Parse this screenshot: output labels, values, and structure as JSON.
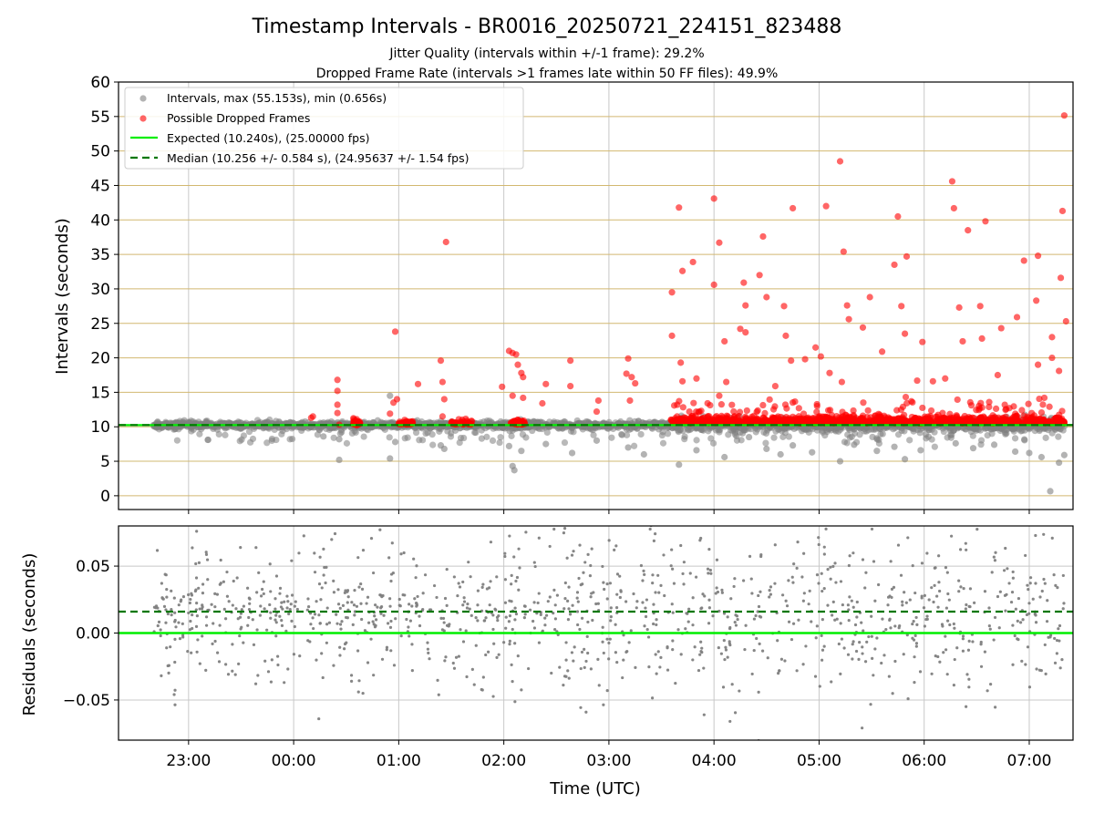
{
  "title": "Timestamp Intervals - BR0016_20250721_224151_823488",
  "subtitle_lines": [
    "Jitter Quality (intervals within +/-1 frame): 29.2%",
    "Dropped Frame Rate (intervals >1 frames late within 50 FF files): 49.9%"
  ],
  "colors": {
    "intervals": "#808080",
    "dropped": "#ff0000",
    "expected": "#00ee00",
    "median": "#007700",
    "hgrid": "#d2b870",
    "vgrid": "#c8c8c8"
  },
  "chart_data": [
    {
      "type": "scatter",
      "ylabel": "Intervals (seconds)",
      "ylim": [
        -2,
        60
      ],
      "yticks": [
        "0",
        "5",
        "10",
        "15",
        "20",
        "25",
        "30",
        "35",
        "40",
        "45",
        "50",
        "55",
        "60"
      ],
      "grid": true,
      "legend_position": "top-left",
      "legend": [
        "Intervals, max (55.153s), min (0.656s)",
        "Possible Dropped Frames",
        "Expected (10.240s), (25.00000 fps)",
        "Median (10.256 +/- 0.584 s), (24.95637 +/- 1.54 fps)"
      ],
      "expected": 10.24,
      "median": 10.256,
      "series": [
        {
          "name": "Intervals, max (55.153s), min (0.656s)",
          "band": {
            "x_start": "22:40",
            "x_end": "07:20",
            "center": 10.24
          },
          "points": [
            {
              "x": "00:17",
              "y": 8.6
            },
            {
              "x": "00:26",
              "y": 8.2
            },
            {
              "x": "00:26",
              "y": 5.2
            },
            {
              "x": "00:55",
              "y": 5.4
            },
            {
              "x": "00:55",
              "y": 14.5
            },
            {
              "x": "00:58",
              "y": 7.8
            },
            {
              "x": "01:24",
              "y": 7.3
            },
            {
              "x": "01:26",
              "y": 6.8
            },
            {
              "x": "02:03",
              "y": 7.2
            },
            {
              "x": "02:05",
              "y": 4.3
            },
            {
              "x": "02:06",
              "y": 3.7
            },
            {
              "x": "02:10",
              "y": 6.5
            },
            {
              "x": "02:24",
              "y": 7.5
            },
            {
              "x": "02:39",
              "y": 6.2
            },
            {
              "x": "02:53",
              "y": 8.0
            },
            {
              "x": "03:11",
              "y": 7.0
            },
            {
              "x": "03:20",
              "y": 6.0
            },
            {
              "x": "03:40",
              "y": 4.5
            },
            {
              "x": "03:50",
              "y": 6.6
            },
            {
              "x": "04:06",
              "y": 5.6
            },
            {
              "x": "04:20",
              "y": 8.5
            },
            {
              "x": "04:30",
              "y": 6.8
            },
            {
              "x": "04:38",
              "y": 6.0
            },
            {
              "x": "04:45",
              "y": 7.3
            },
            {
              "x": "04:56",
              "y": 6.3
            },
            {
              "x": "05:12",
              "y": 5.0
            },
            {
              "x": "05:20",
              "y": 7.4
            },
            {
              "x": "05:33",
              "y": 6.5
            },
            {
              "x": "05:43",
              "y": 7.1
            },
            {
              "x": "05:49",
              "y": 5.3
            },
            {
              "x": "05:58",
              "y": 6.6
            },
            {
              "x": "06:18",
              "y": 7.6
            },
            {
              "x": "06:28",
              "y": 6.9
            },
            {
              "x": "06:40",
              "y": 7.4
            },
            {
              "x": "06:52",
              "y": 6.4
            },
            {
              "x": "07:00",
              "y": 6.2
            },
            {
              "x": "07:07",
              "y": 5.6
            },
            {
              "x": "07:12",
              "y": 0.656
            },
            {
              "x": "07:17",
              "y": 4.8
            },
            {
              "x": "07:20",
              "y": 5.9
            }
          ]
        },
        {
          "name": "Possible Dropped Frames",
          "band": {
            "x_start": "03:35",
            "x_end": "07:20",
            "center": 10.5
          },
          "points": [
            {
              "x": "00:10",
              "y": 11.3
            },
            {
              "x": "00:11",
              "y": 11.5
            },
            {
              "x": "00:25",
              "y": 16.8
            },
            {
              "x": "00:25",
              "y": 15.2
            },
            {
              "x": "00:25",
              "y": 13.2
            },
            {
              "x": "00:25",
              "y": 12.0
            },
            {
              "x": "00:26",
              "y": 10.3
            },
            {
              "x": "00:36",
              "y": 10.2
            },
            {
              "x": "00:55",
              "y": 11.9
            },
            {
              "x": "00:57",
              "y": 13.5
            },
            {
              "x": "00:58",
              "y": 23.8
            },
            {
              "x": "00:59",
              "y": 14.0
            },
            {
              "x": "01:00",
              "y": 10.5
            },
            {
              "x": "01:06",
              "y": 10.4
            },
            {
              "x": "01:11",
              "y": 16.2
            },
            {
              "x": "01:24",
              "y": 19.6
            },
            {
              "x": "01:25",
              "y": 16.5
            },
            {
              "x": "01:26",
              "y": 14.0
            },
            {
              "x": "01:25",
              "y": 11.5
            },
            {
              "x": "01:27",
              "y": 36.8
            },
            {
              "x": "01:30",
              "y": 10.6
            },
            {
              "x": "01:37",
              "y": 10.4
            },
            {
              "x": "01:59",
              "y": 15.8
            },
            {
              "x": "02:03",
              "y": 21.0
            },
            {
              "x": "02:05",
              "y": 20.7
            },
            {
              "x": "02:05",
              "y": 14.5
            },
            {
              "x": "02:07",
              "y": 20.5
            },
            {
              "x": "02:08",
              "y": 19.0
            },
            {
              "x": "02:10",
              "y": 17.8
            },
            {
              "x": "02:11",
              "y": 17.2
            },
            {
              "x": "02:11",
              "y": 14.2
            },
            {
              "x": "02:08",
              "y": 11.0
            },
            {
              "x": "02:22",
              "y": 13.4
            },
            {
              "x": "02:24",
              "y": 16.2
            },
            {
              "x": "02:38",
              "y": 19.6
            },
            {
              "x": "02:38",
              "y": 15.9
            },
            {
              "x": "02:53",
              "y": 12.2
            },
            {
              "x": "02:54",
              "y": 13.8
            },
            {
              "x": "03:10",
              "y": 17.7
            },
            {
              "x": "03:11",
              "y": 19.9
            },
            {
              "x": "03:12",
              "y": 13.8
            },
            {
              "x": "03:13",
              "y": 17.2
            },
            {
              "x": "03:15",
              "y": 16.3
            },
            {
              "x": "03:36",
              "y": 29.5
            },
            {
              "x": "03:36",
              "y": 23.2
            },
            {
              "x": "03:39",
              "y": 13.2
            },
            {
              "x": "03:40",
              "y": 41.8
            },
            {
              "x": "03:41",
              "y": 19.3
            },
            {
              "x": "03:42",
              "y": 16.6
            },
            {
              "x": "03:42",
              "y": 32.6
            },
            {
              "x": "03:48",
              "y": 33.9
            },
            {
              "x": "03:50",
              "y": 17.0
            },
            {
              "x": "04:00",
              "y": 43.1
            },
            {
              "x": "04:00",
              "y": 30.6
            },
            {
              "x": "04:03",
              "y": 36.7
            },
            {
              "x": "04:03",
              "y": 14.5
            },
            {
              "x": "04:06",
              "y": 22.4
            },
            {
              "x": "04:07",
              "y": 16.5
            },
            {
              "x": "04:15",
              "y": 24.2
            },
            {
              "x": "04:17",
              "y": 30.9
            },
            {
              "x": "04:18",
              "y": 27.6
            },
            {
              "x": "04:18",
              "y": 23.7
            },
            {
              "x": "04:26",
              "y": 32.0
            },
            {
              "x": "04:28",
              "y": 37.6
            },
            {
              "x": "04:30",
              "y": 28.8
            },
            {
              "x": "04:35",
              "y": 15.9
            },
            {
              "x": "04:40",
              "y": 27.5
            },
            {
              "x": "04:41",
              "y": 23.2
            },
            {
              "x": "04:44",
              "y": 19.6
            },
            {
              "x": "04:45",
              "y": 41.7
            },
            {
              "x": "04:52",
              "y": 19.8
            },
            {
              "x": "04:58",
              "y": 21.5
            },
            {
              "x": "05:01",
              "y": 20.2
            },
            {
              "x": "05:04",
              "y": 42.0
            },
            {
              "x": "05:06",
              "y": 17.8
            },
            {
              "x": "05:12",
              "y": 48.5
            },
            {
              "x": "05:13",
              "y": 16.5
            },
            {
              "x": "05:14",
              "y": 35.4
            },
            {
              "x": "05:16",
              "y": 27.6
            },
            {
              "x": "05:17",
              "y": 25.6
            },
            {
              "x": "05:25",
              "y": 24.4
            },
            {
              "x": "05:29",
              "y": 28.8
            },
            {
              "x": "05:36",
              "y": 20.9
            },
            {
              "x": "05:43",
              "y": 33.5
            },
            {
              "x": "05:45",
              "y": 40.5
            },
            {
              "x": "05:47",
              "y": 27.5
            },
            {
              "x": "05:49",
              "y": 23.5
            },
            {
              "x": "05:50",
              "y": 34.7
            },
            {
              "x": "05:56",
              "y": 16.7
            },
            {
              "x": "05:59",
              "y": 22.3
            },
            {
              "x": "06:05",
              "y": 16.6
            },
            {
              "x": "06:12",
              "y": 17.0
            },
            {
              "x": "06:16",
              "y": 45.6
            },
            {
              "x": "06:17",
              "y": 41.7
            },
            {
              "x": "06:20",
              "y": 27.3
            },
            {
              "x": "06:22",
              "y": 22.4
            },
            {
              "x": "06:25",
              "y": 38.5
            },
            {
              "x": "06:32",
              "y": 27.5
            },
            {
              "x": "06:33",
              "y": 22.8
            },
            {
              "x": "06:35",
              "y": 39.8
            },
            {
              "x": "06:42",
              "y": 17.5
            },
            {
              "x": "06:44",
              "y": 24.3
            },
            {
              "x": "06:53",
              "y": 25.9
            },
            {
              "x": "06:57",
              "y": 34.1
            },
            {
              "x": "07:04",
              "y": 28.3
            },
            {
              "x": "07:05",
              "y": 34.8
            },
            {
              "x": "07:05",
              "y": 19.0
            },
            {
              "x": "07:13",
              "y": 23.0
            },
            {
              "x": "07:13",
              "y": 20.0
            },
            {
              "x": "07:17",
              "y": 18.1
            },
            {
              "x": "07:18",
              "y": 31.6
            },
            {
              "x": "07:19",
              "y": 41.3
            },
            {
              "x": "07:20",
              "y": 55.153
            },
            {
              "x": "07:21",
              "y": 25.3
            }
          ]
        }
      ]
    },
    {
      "type": "scatter",
      "xlabel": "Time (UTC)",
      "ylabel": "Residuals (seconds)",
      "ylim": [
        -0.08,
        0.08
      ],
      "yticks": [
        "−0.05",
        "0.00",
        "0.05"
      ],
      "xticks": [
        "23:00",
        "00:00",
        "01:00",
        "02:00",
        "03:00",
        "04:00",
        "05:00",
        "06:00",
        "07:00"
      ],
      "xlim": [
        "22:20",
        "07:25"
      ],
      "grid": true,
      "expected": 0.0,
      "median": 0.016,
      "series": [
        {
          "name": "",
          "scatter": {
            "x_start": "22:40",
            "x_end": "07:20",
            "center": 0.016
          }
        }
      ]
    }
  ]
}
